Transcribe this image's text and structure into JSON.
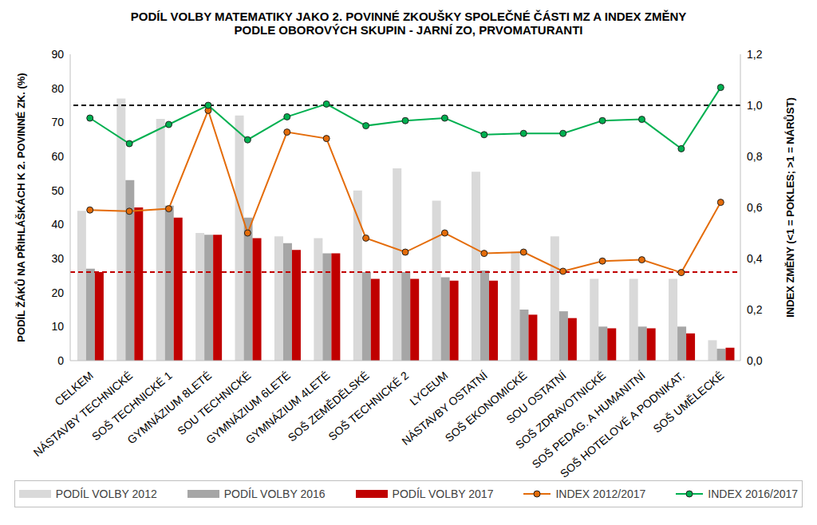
{
  "chart_data": {
    "type": "bar",
    "title": "PODÍL VOLBY MATEMATIKY JAKO 2. POVINNÉ ZKOUŠKY SPOLEČNÉ ČÁSTI MZ  A INDEX ZMĚNY\nPODLE OBOROVÝCH SKUPIN - JARNÍ ZO, PRVOMATURANTI",
    "y_label": "PODÍL ŽÁKŮ NA PŘIHLÁŠKÁCH K 2. POVINNÉ ZK. (%)",
    "y2_label": "INDEX ZMĚNY (<1 = POKLES; >1 = NÁRŮST)",
    "categories": [
      "CELKEM",
      "NÁSTAVBY TECHNICKÉ",
      "SOŠ TECHNICKÉ 1",
      "GYMNÁZIUM 8LETÉ",
      "SOU TECHNICKÉ",
      "GYMNÁZIUM 6LETÉ",
      "GYMNÁZIUM 4LETÉ",
      "SOŠ ZEMĚDĚLSKÉ",
      "SOŠ TECHNICKÉ 2",
      "LYCEUM",
      "NÁSTAVBY OSTATNÍ",
      "SOŠ EKONOMICKÉ",
      "SOU OSTATNÍ",
      "SOŠ ZDRAVOTNICKÉ",
      "SOŠ PEDAG. A HUMANITNÍ",
      "SOŠ HOTELOVÉ A PODNIKAT.",
      "SOŠ UMĚLECKÉ"
    ],
    "series": [
      {
        "name": "PODÍL VOLBY 2012",
        "type": "bar",
        "axis": "y",
        "color": "#d9d9d9",
        "values": [
          44,
          77,
          71,
          37.5,
          72,
          36.5,
          36,
          50,
          56.5,
          47,
          55.5,
          32,
          36.5,
          24,
          24,
          24,
          6
        ]
      },
      {
        "name": "PODÍL VOLBY 2016",
        "type": "bar",
        "axis": "y",
        "color": "#a6a6a6",
        "values": [
          27,
          53,
          45.5,
          37,
          42,
          34.5,
          31.5,
          26,
          26,
          24.5,
          26.5,
          15,
          14.5,
          10,
          10,
          10,
          3.5
        ]
      },
      {
        "name": "PODÍL VOLBY 2017",
        "type": "bar",
        "axis": "y",
        "color": "#c00000",
        "values": [
          26,
          45,
          42,
          37,
          36,
          32.5,
          31.5,
          24,
          24,
          23.5,
          23.5,
          13.5,
          12.5,
          9.5,
          9.5,
          8,
          3.8
        ]
      },
      {
        "name": "INDEX 2012/2017",
        "type": "line",
        "axis": "y2",
        "color": "#e46c0a",
        "marker": "circle",
        "values": [
          0.59,
          0.585,
          0.595,
          0.98,
          0.5,
          0.895,
          0.87,
          0.48,
          0.425,
          0.5,
          0.42,
          0.425,
          0.35,
          0.39,
          0.395,
          0.345,
          0.62
        ]
      },
      {
        "name": "INDEX 2016/2017",
        "type": "line",
        "axis": "y2",
        "color": "#00b050",
        "marker": "circle",
        "values": [
          0.95,
          0.85,
          0.925,
          1.0,
          0.865,
          0.955,
          1.005,
          0.92,
          0.94,
          0.95,
          0.885,
          0.89,
          0.89,
          0.94,
          0.945,
          0.83,
          1.07
        ]
      }
    ],
    "ylim": [
      0,
      90
    ],
    "yticks": [
      0,
      10,
      20,
      30,
      40,
      50,
      60,
      70,
      80,
      90
    ],
    "y2lim": [
      0,
      1.2
    ],
    "y2ticks": [
      {
        "value": 0,
        "label": "0,0"
      },
      {
        "value": 0.2,
        "label": "0,2"
      },
      {
        "value": 0.4,
        "label": "0,4"
      },
      {
        "value": 0.6,
        "label": "0,6"
      },
      {
        "value": 0.8,
        "label": "0,8"
      },
      {
        "value": 1.0,
        "label": "1,0"
      },
      {
        "value": 1.2,
        "label": "1,2"
      }
    ],
    "reference_lines": [
      {
        "value": 1.0,
        "axis": "y2",
        "color": "#000000",
        "line_style": "dashed"
      },
      {
        "value": 26,
        "axis": "y",
        "color": "#c00000",
        "line_style": "dashed"
      }
    ],
    "grid": false,
    "legend": "bottom"
  }
}
